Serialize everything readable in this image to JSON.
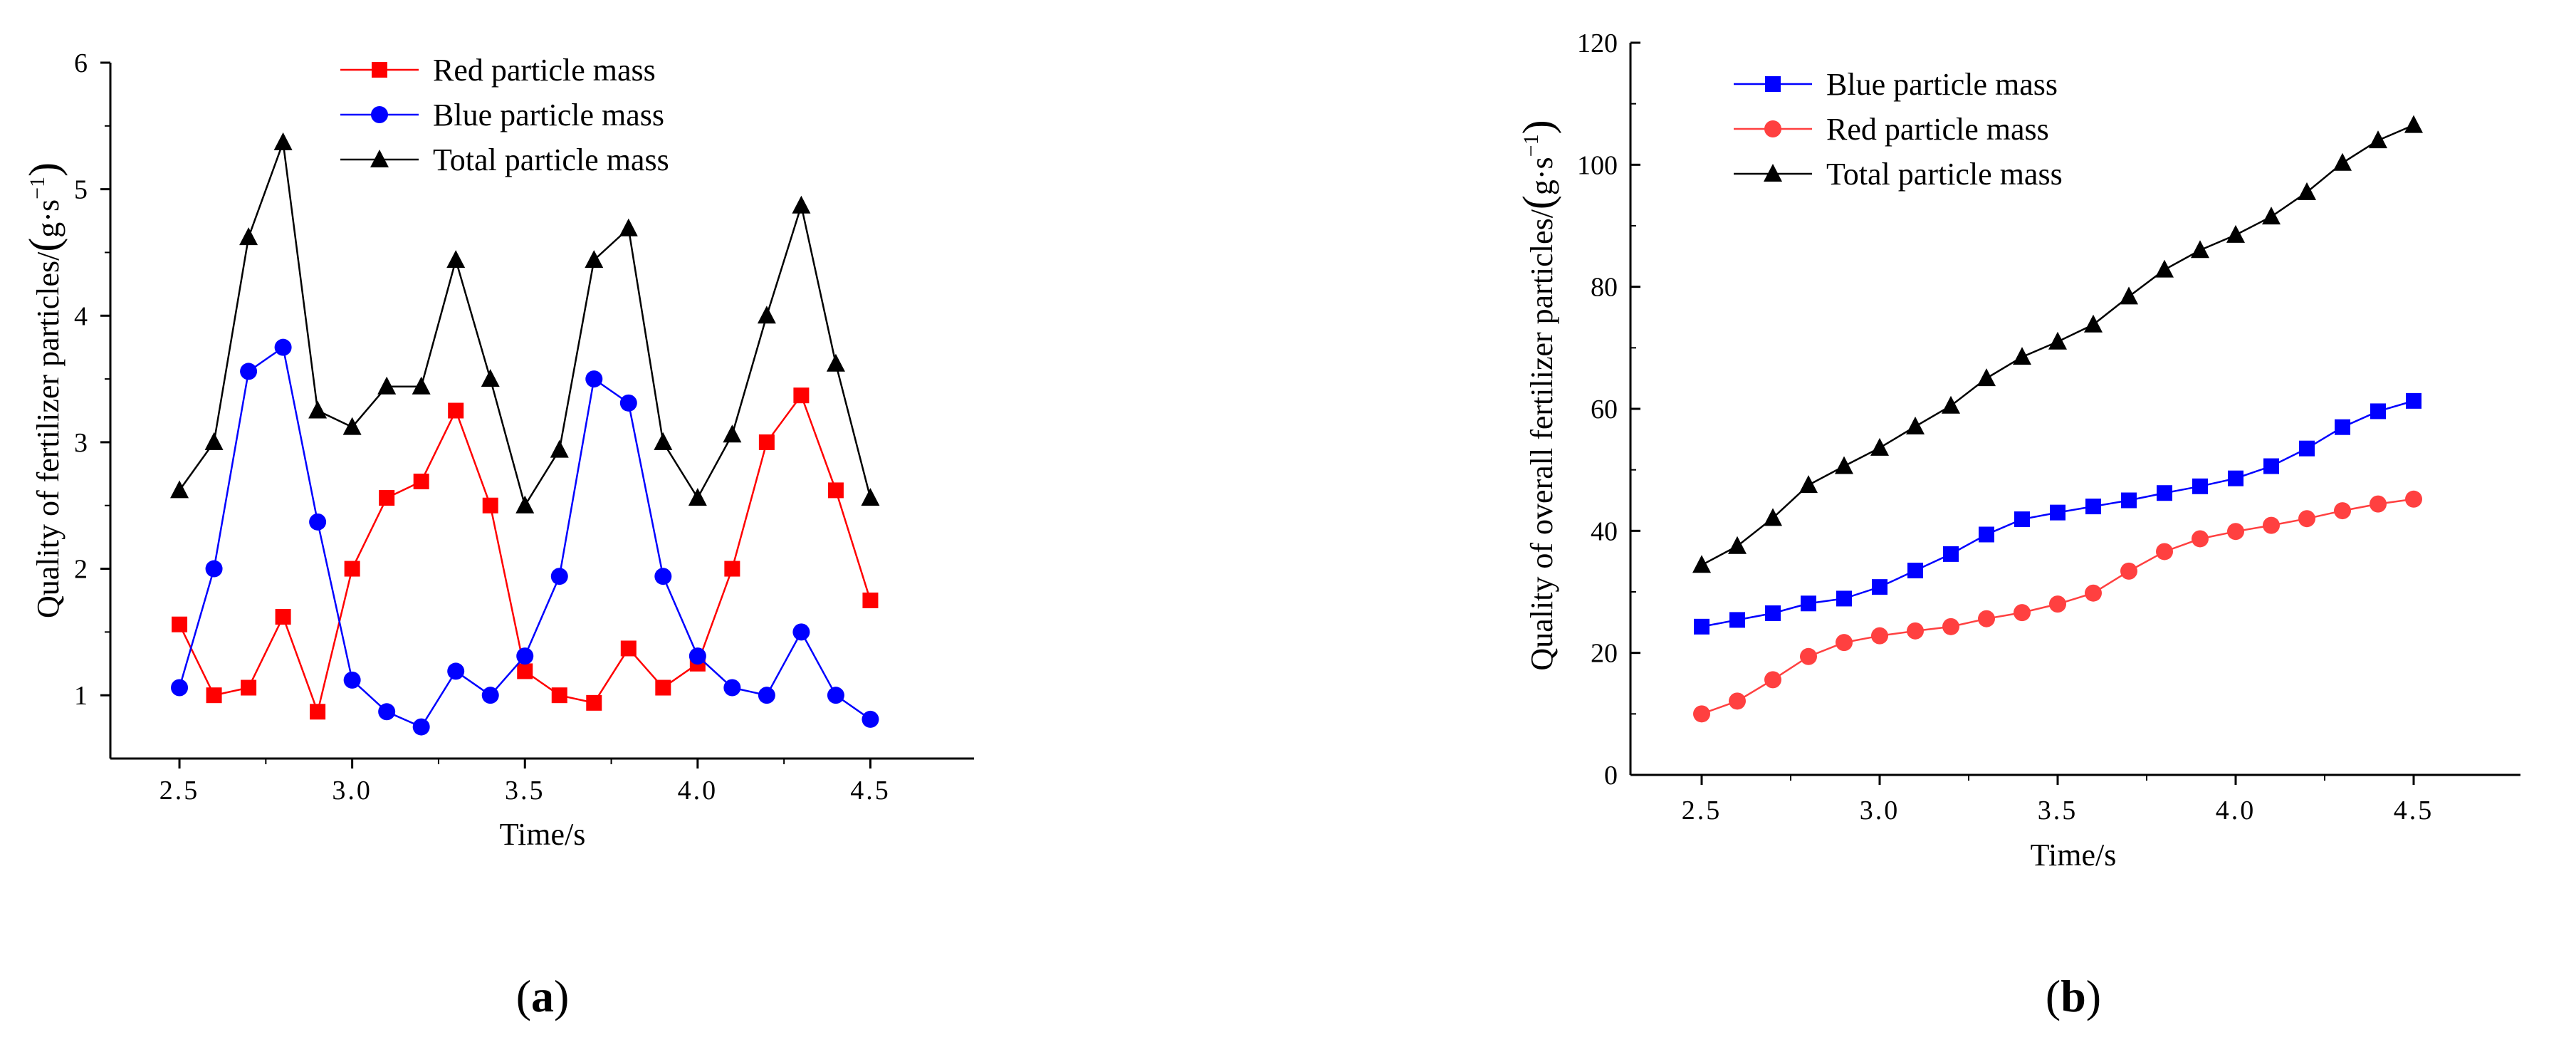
{
  "chart_data": [
    {
      "id": "a",
      "type": "line",
      "panel_label": {
        "open": "(",
        "letter": "a",
        "close": ")"
      },
      "xlabel": "Time/s",
      "ylabel": "Quality of fertilizer particles/",
      "yunit": {
        "open": "(",
        "base": "g·s",
        "exp": "−1",
        "close": ")"
      },
      "xlim": [
        2.3,
        4.8
      ],
      "ylim": [
        0.5,
        6
      ],
      "xticks": [
        2.5,
        3.0,
        3.5,
        4.0,
        4.5
      ],
      "xtick_labels": [
        "2.5",
        "3.0",
        "3.5",
        "4.0",
        "4.5"
      ],
      "yticks": [
        1,
        2,
        3,
        4,
        5,
        6
      ],
      "ytick_labels": [
        "1",
        "2",
        "3",
        "4",
        "5",
        "6"
      ],
      "x": [
        2.5,
        2.6,
        2.7,
        2.8,
        2.9,
        3.0,
        3.1,
        3.2,
        3.3,
        3.4,
        3.5,
        3.6,
        3.7,
        3.8,
        3.9,
        4.0,
        4.1,
        4.2,
        4.3,
        4.4,
        4.5
      ],
      "series": [
        {
          "name": "Red particle mass",
          "color": "#ff0000",
          "marker": "square",
          "values": [
            1.56,
            1.0,
            1.06,
            1.62,
            0.87,
            2.0,
            2.56,
            2.69,
            3.25,
            2.5,
            1.19,
            1.0,
            0.94,
            1.37,
            1.06,
            1.25,
            2.0,
            3.0,
            3.37,
            2.62,
            1.75
          ]
        },
        {
          "name": "Blue particle mass",
          "color": "#0000ff",
          "marker": "circle",
          "values": [
            1.06,
            2.0,
            3.56,
            3.75,
            2.37,
            1.12,
            0.87,
            0.75,
            1.19,
            1.0,
            1.31,
            1.94,
            3.5,
            3.31,
            1.94,
            1.31,
            1.06,
            1.0,
            1.5,
            1.0,
            0.81
          ]
        },
        {
          "name": "Total particle mass",
          "color": "#000000",
          "marker": "triangle",
          "values": [
            2.62,
            3.0,
            4.62,
            5.37,
            3.25,
            3.12,
            3.44,
            3.44,
            4.44,
            3.5,
            2.5,
            2.94,
            4.44,
            4.69,
            3.0,
            2.56,
            3.06,
            4.0,
            4.87,
            3.62,
            2.56
          ]
        }
      ]
    },
    {
      "id": "b",
      "type": "line",
      "panel_label": {
        "open": "(",
        "letter": "b",
        "close": ")"
      },
      "xlabel": "Time/s",
      "ylabel": "Quality of overall fertilizer particles/",
      "yunit": {
        "open": "(",
        "base": "g·s",
        "exp": "−1",
        "close": ")"
      },
      "xlim": [
        2.3,
        4.8
      ],
      "ylim": [
        0,
        120
      ],
      "xticks": [
        2.5,
        3.0,
        3.5,
        4.0,
        4.5
      ],
      "xtick_labels": [
        "2.5",
        "3.0",
        "3.5",
        "4.0",
        "4.5"
      ],
      "yticks": [
        0,
        20,
        40,
        60,
        80,
        100,
        120
      ],
      "ytick_labels": [
        "0",
        "20",
        "40",
        "60",
        "80",
        "100",
        "120"
      ],
      "x": [
        2.5,
        2.6,
        2.7,
        2.8,
        2.9,
        3.0,
        3.1,
        3.2,
        3.3,
        3.4,
        3.5,
        3.6,
        3.7,
        3.8,
        3.9,
        4.0,
        4.1,
        4.2,
        4.3,
        4.4,
        4.5
      ],
      "series": [
        {
          "name": "Blue particle mass",
          "color": "#0000ff",
          "marker": "square",
          "values": [
            24.3,
            25.4,
            26.5,
            28.1,
            28.9,
            30.8,
            33.5,
            36.2,
            39.4,
            41.9,
            43.0,
            44.0,
            45.0,
            46.2,
            47.3,
            48.6,
            50.6,
            53.5,
            57.0,
            59.6,
            61.3
          ]
        },
        {
          "name": "Red particle mass",
          "color": "#ff4040",
          "marker": "circle",
          "values": [
            10.0,
            12.1,
            15.6,
            19.4,
            21.7,
            22.8,
            23.6,
            24.3,
            25.6,
            26.6,
            28.0,
            29.8,
            33.4,
            36.6,
            38.7,
            39.9,
            40.9,
            42.0,
            43.3,
            44.4,
            45.2
          ]
        },
        {
          "name": "Total particle mass",
          "color": "#000000",
          "marker": "triangle",
          "values": [
            34.4,
            37.5,
            42.1,
            47.5,
            50.6,
            53.6,
            57.1,
            60.5,
            65.0,
            68.5,
            71.0,
            73.8,
            78.4,
            82.8,
            86.0,
            88.5,
            91.5,
            95.5,
            100.3,
            104.0,
            106.5
          ]
        }
      ]
    }
  ]
}
